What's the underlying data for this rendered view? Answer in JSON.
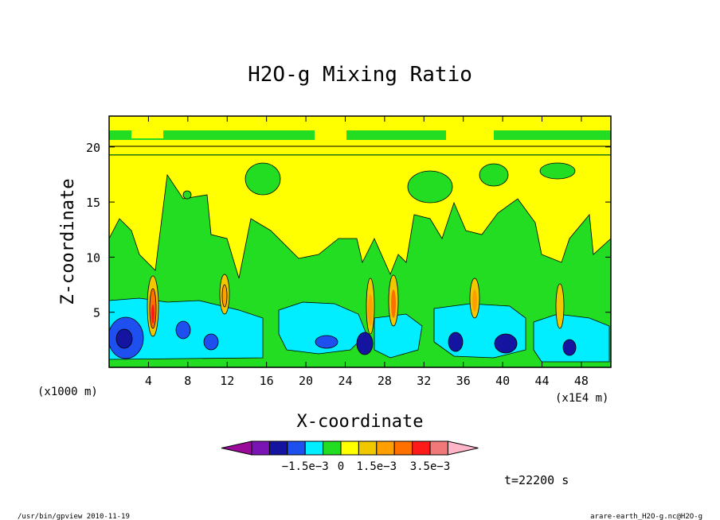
{
  "chart_data": {
    "type": "heatmap",
    "title": "H2O-g Mixing Ratio",
    "xlabel": "X-coordinate",
    "ylabel": "Z-coordinate",
    "x_unit": "(x1E4 m)",
    "y_unit": "(x1000 m)",
    "xlim": [
      0,
      51
    ],
    "ylim": [
      0,
      22.8
    ],
    "x_ticks": [
      4,
      8,
      12,
      16,
      20,
      24,
      28,
      32,
      36,
      40,
      44,
      48
    ],
    "y_ticks": [
      5,
      10,
      15,
      20
    ],
    "colorbar": {
      "colors": [
        "#9a0a9a",
        "#7a14b4",
        "#1414a0",
        "#1e50f0",
        "#00eeff",
        "#22dd22",
        "#ffff00",
        "#f0c800",
        "#ffa000",
        "#ff7000",
        "#ff1a1a",
        "#f07878",
        "#ffb4c8"
      ],
      "tick_labels": [
        "−1.5e−3",
        "0",
        "1.5e−3",
        "3.5e−3"
      ]
    },
    "time_label": "t=22200 s"
  },
  "footer": {
    "left": "/usr/bin/gpview  2010-11-19",
    "right": "arare-earth_H2O-g.nc@H2O-g"
  }
}
